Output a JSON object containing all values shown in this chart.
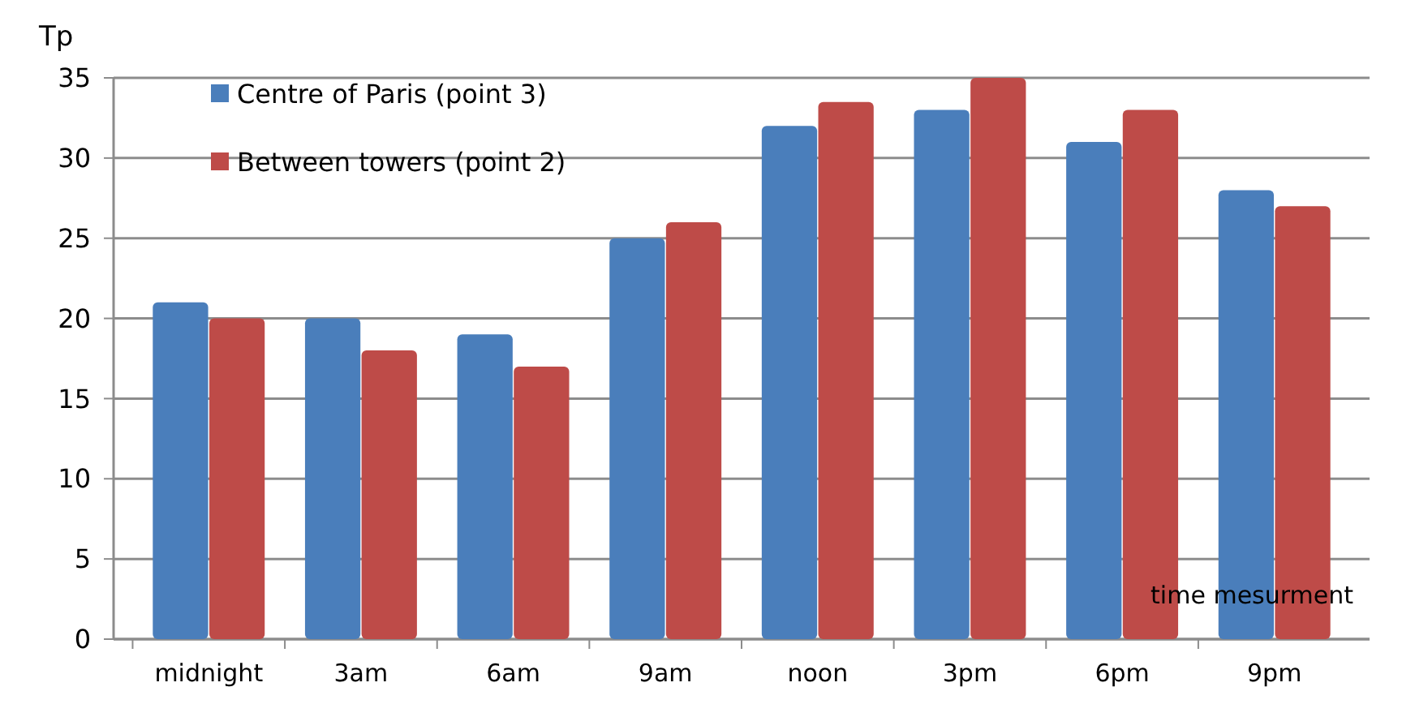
{
  "chart_data": {
    "type": "bar",
    "ylabel": "Tp",
    "xlabel": "time mesurment",
    "categories": [
      "midnight",
      "3am",
      "6am",
      "9am",
      "noon",
      "3pm",
      "6pm",
      "9pm"
    ],
    "series": [
      {
        "name": "Centre of Paris (point 3)",
        "color": "#4a7ebb",
        "values": [
          21,
          20,
          19,
          25,
          32,
          33,
          31,
          28
        ]
      },
      {
        "name": "Between towers (point 2)",
        "color": "#be4b48",
        "values": [
          20,
          18,
          17,
          26,
          33.5,
          35,
          33,
          27
        ]
      }
    ],
    "ylim": [
      0,
      35
    ],
    "yticks": [
      0,
      5,
      10,
      15,
      20,
      25,
      30,
      35
    ],
    "grid": "y",
    "legend": "top left"
  }
}
